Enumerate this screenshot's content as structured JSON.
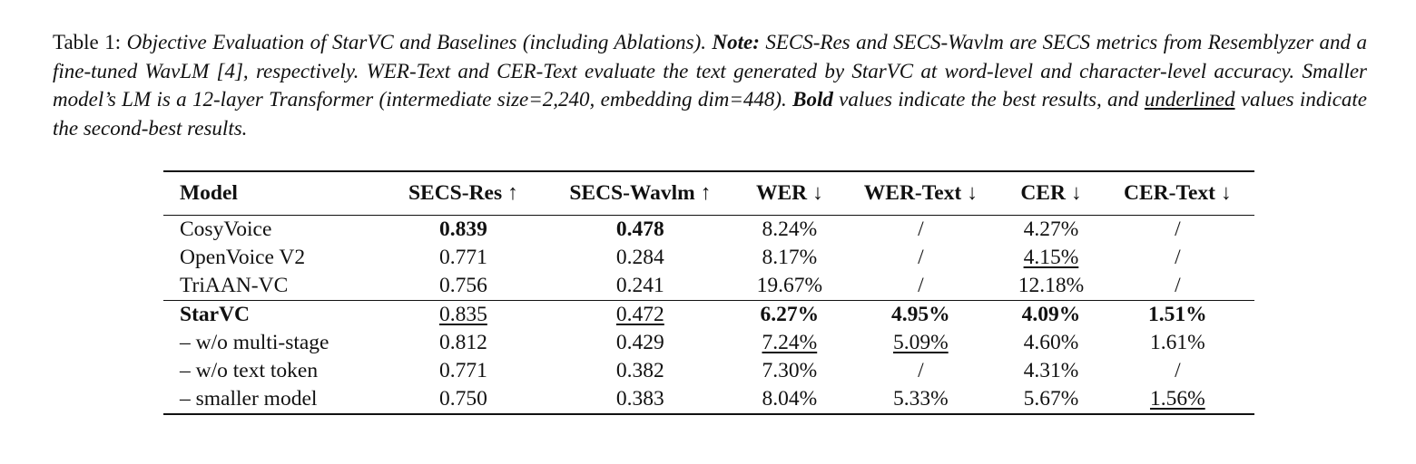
{
  "caption": {
    "label": "Table 1:",
    "title": "Objective Evaluation of StarVC and Baselines (including Ablations).",
    "note_label": "Note:",
    "note_text": "SECS-Res and SECS-Wavlm are SECS metrics from Resemblyzer and a fine-tuned WavLM [4], respectively. WER-Text and CER-Text evaluate the text generated by StarVC at word-level and character-level accuracy. Smaller model’s LM is a 12-layer Transformer (intermediate size=2,240, embedding dim=448).",
    "bold_word": "Bold",
    "mid_text": "values indicate the best results, and",
    "underlined_word": "underlined",
    "end_text": "values indicate the second-best results."
  },
  "table": {
    "headers": {
      "model": "Model",
      "secs_res": "SECS-Res",
      "secs_wavlm": "SECS-Wavlm",
      "wer": "WER",
      "wer_text": "WER-Text",
      "cer": "CER",
      "cer_text": "CER-Text",
      "up_arrow": "↑",
      "down_arrow": "↓"
    },
    "baselines": [
      {
        "model": "CosyVoice",
        "secs_res": "0.839",
        "secs_wavlm": "0.478",
        "wer": "8.24%",
        "wer_text": "/",
        "cer": "4.27%",
        "cer_text": "/"
      },
      {
        "model": "OpenVoice V2",
        "secs_res": "0.771",
        "secs_wavlm": "0.284",
        "wer": "8.17%",
        "wer_text": "/",
        "cer": "4.15%",
        "cer_text": "/"
      },
      {
        "model": "TriAAN-VC",
        "secs_res": "0.756",
        "secs_wavlm": "0.241",
        "wer": "19.67%",
        "wer_text": "/",
        "cer": "12.18%",
        "cer_text": "/"
      }
    ],
    "starvc": [
      {
        "model": "StarVC",
        "secs_res": "0.835",
        "secs_wavlm": "0.472",
        "wer": "6.27%",
        "wer_text": "4.95%",
        "cer": "4.09%",
        "cer_text": "1.51%"
      },
      {
        "model": "– w/o multi-stage",
        "secs_res": "0.812",
        "secs_wavlm": "0.429",
        "wer": "7.24%",
        "wer_text": "5.09%",
        "cer": "4.60%",
        "cer_text": "1.61%"
      },
      {
        "model": "– w/o text token",
        "secs_res": "0.771",
        "secs_wavlm": "0.382",
        "wer": "7.30%",
        "wer_text": "/",
        "cer": "4.31%",
        "cer_text": "/"
      },
      {
        "model": "– smaller model",
        "secs_res": "0.750",
        "secs_wavlm": "0.383",
        "wer": "8.04%",
        "wer_text": "5.33%",
        "cer": "5.67%",
        "cer_text": "1.56%"
      }
    ]
  }
}
